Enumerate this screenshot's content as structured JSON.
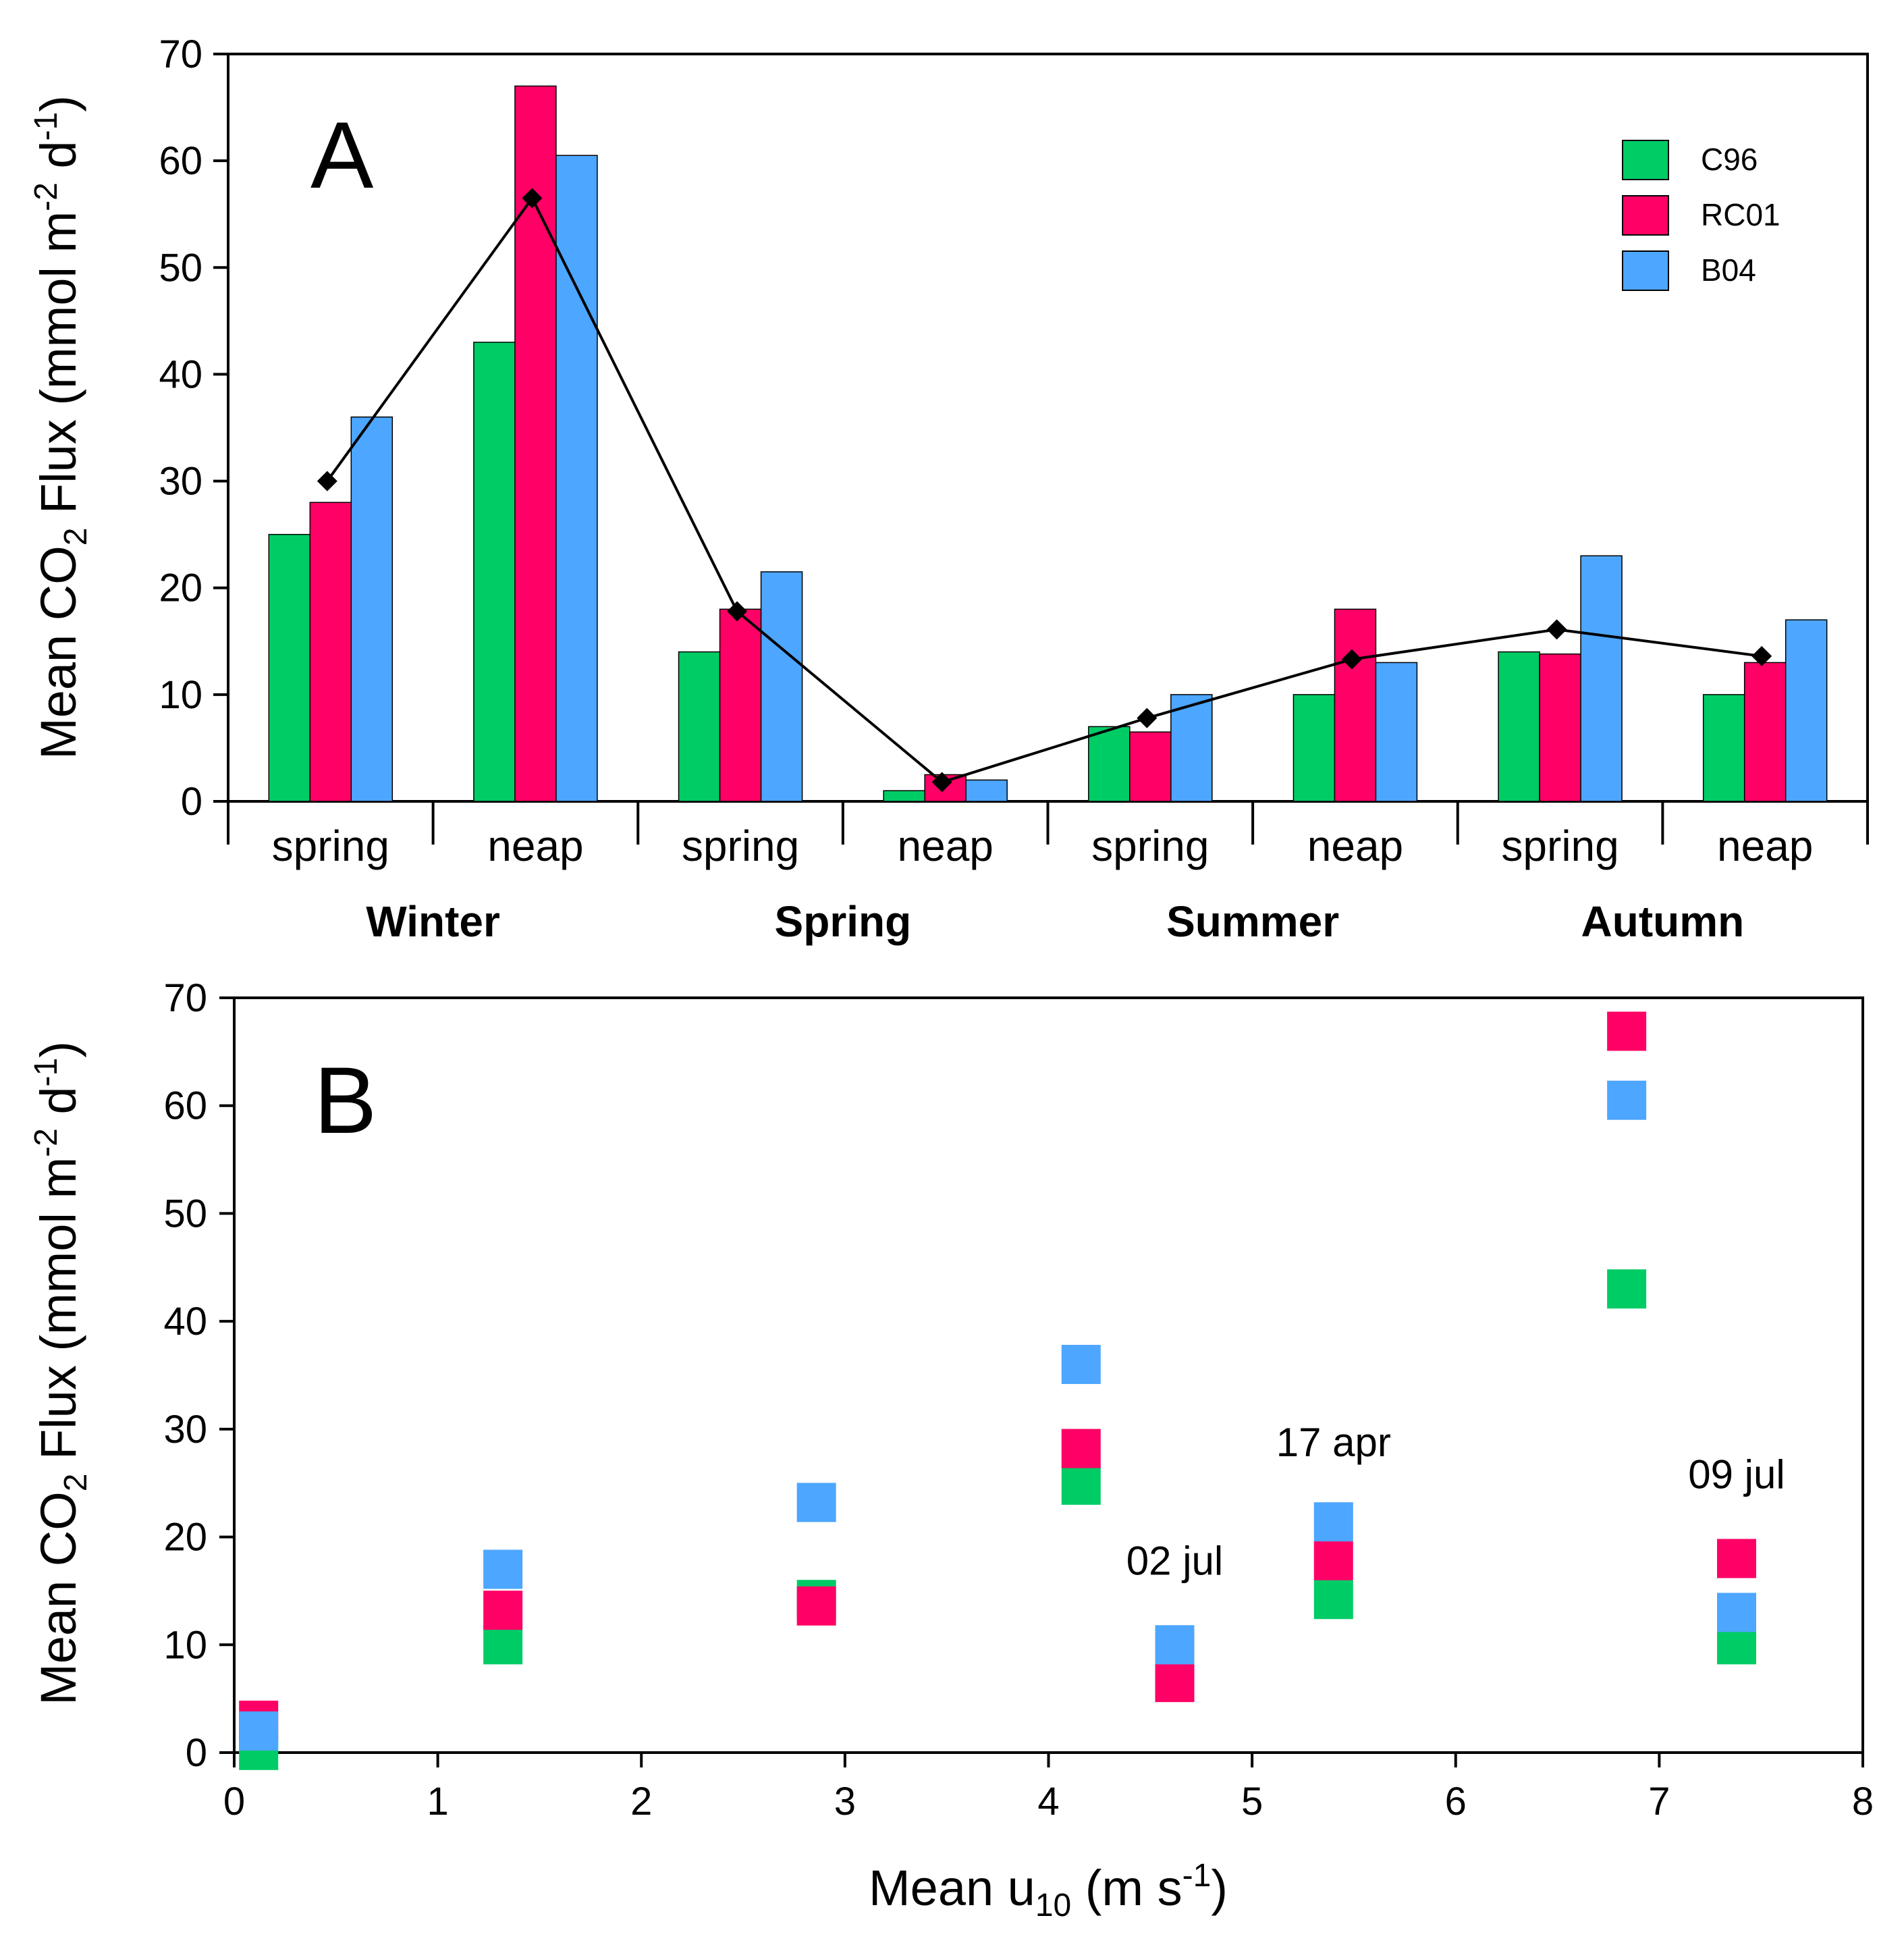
{
  "colors": {
    "C96": "#00cc66",
    "RC01": "#ff0066",
    "B04": "#4da6ff",
    "mean": "#000000"
  },
  "chart_data": [
    {
      "type": "bar",
      "panel": "A",
      "ylabel_parts": {
        "pre": "Mean CO",
        "sub": "2",
        "mid": " Flux (mmol m",
        "sup1": "-2",
        "mid2": " d",
        "sup2": "-1",
        "post": ")"
      },
      "ylim": [
        0,
        70
      ],
      "yticks": [
        "0",
        "10",
        "20",
        "30",
        "40",
        "50",
        "60",
        "70"
      ],
      "categories": [
        "spring",
        "neap",
        "spring",
        "neap",
        "spring",
        "neap",
        "spring",
        "neap"
      ],
      "seasons": [
        "Winter",
        "Spring",
        "Summer",
        "Autumn"
      ],
      "series": [
        {
          "name": "C96",
          "values": [
            25,
            43,
            14,
            1,
            7,
            10,
            14,
            10
          ]
        },
        {
          "name": "RC01",
          "values": [
            28,
            67,
            18,
            2.5,
            6.5,
            18,
            13.8,
            13
          ]
        },
        {
          "name": "B04",
          "values": [
            36,
            60.5,
            21.5,
            2,
            10,
            13,
            23,
            17
          ]
        }
      ],
      "mean_line": [
        30,
        56.5,
        17.8,
        1.8,
        7.8,
        13.3,
        16.1,
        13.6
      ],
      "legend": [
        "C96",
        "RC01",
        "B04"
      ],
      "legend_position": "top-right"
    },
    {
      "type": "scatter",
      "panel": "B",
      "xlabel_parts": {
        "pre": "Mean u",
        "sub": "10",
        "mid": " (m s",
        "sup": "-1",
        "post": ")"
      },
      "ylabel_parts": {
        "pre": "Mean CO",
        "sub": "2",
        "mid": " Flux (mmol m",
        "sup1": "-2",
        "mid2": " d",
        "sup2": "-1",
        "post": ")"
      },
      "xlim": [
        0,
        8
      ],
      "ylim": [
        0,
        70
      ],
      "xticks": [
        "0",
        "1",
        "2",
        "3",
        "4",
        "5",
        "6",
        "7",
        "8"
      ],
      "yticks": [
        "0",
        "10",
        "20",
        "30",
        "40",
        "50",
        "60",
        "70"
      ],
      "series": [
        {
          "name": "C96",
          "points": [
            [
              0.12,
              0.2
            ],
            [
              1.32,
              10
            ],
            [
              2.86,
              14.2
            ],
            [
              4.16,
              24.8
            ],
            [
              4.62,
              7
            ],
            [
              5.4,
              14.2
            ],
            [
              6.84,
              43
            ],
            [
              7.38,
              10
            ]
          ]
        },
        {
          "name": "RC01",
          "points": [
            [
              0.12,
              3
            ],
            [
              1.32,
              13.2
            ],
            [
              2.86,
              13.6
            ],
            [
              4.16,
              28.2
            ],
            [
              4.62,
              6.5
            ],
            [
              5.4,
              17.8
            ],
            [
              6.84,
              66.9
            ],
            [
              7.38,
              18
            ]
          ]
        },
        {
          "name": "B04",
          "points": [
            [
              0.12,
              2
            ],
            [
              1.32,
              17
            ],
            [
              2.86,
              23.2
            ],
            [
              4.16,
              36
            ],
            [
              4.62,
              10
            ],
            [
              5.4,
              21.4
            ],
            [
              6.84,
              60.5
            ],
            [
              7.38,
              13
            ]
          ]
        }
      ],
      "annotations": [
        {
          "text": "02 jul",
          "x": 4.62,
          "y": 16.5
        },
        {
          "text": "17 apr",
          "x": 5.4,
          "y": 27.5
        },
        {
          "text": "09 jul",
          "x": 7.38,
          "y": 24.5
        }
      ]
    }
  ]
}
